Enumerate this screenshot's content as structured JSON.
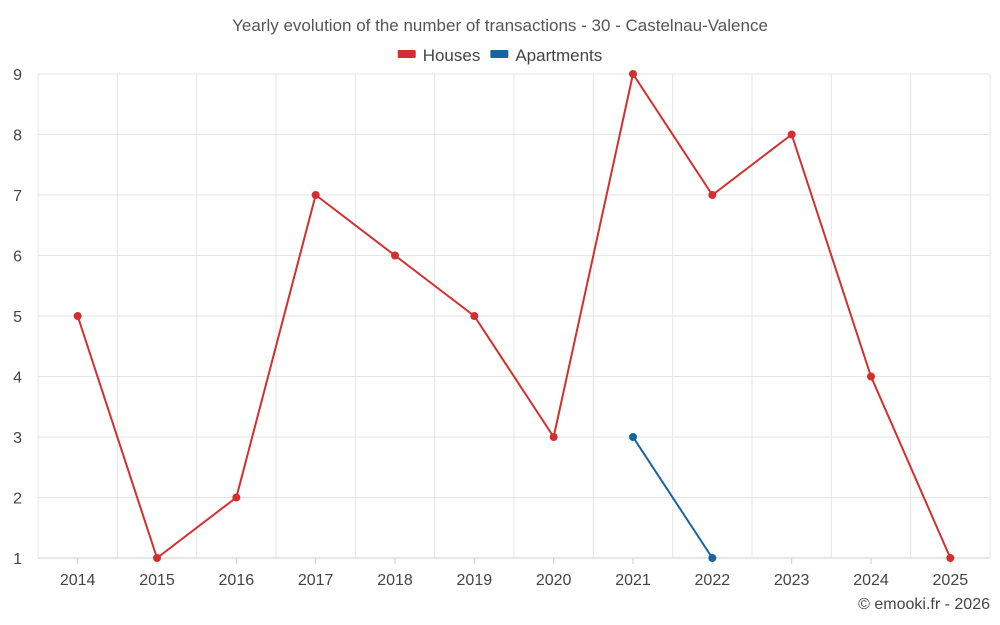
{
  "colors": {
    "houses": "#d32f2f",
    "apartments": "#1565a0",
    "grid": "#e6e6e6",
    "text": "#444444"
  },
  "chart_data": {
    "type": "line",
    "title": "Yearly evolution of the number of transactions - 30 - Castelnau-Valence",
    "xlabel": "",
    "ylabel": "",
    "categories": [
      "2014",
      "2015",
      "2016",
      "2017",
      "2018",
      "2019",
      "2020",
      "2021",
      "2022",
      "2023",
      "2024",
      "2025"
    ],
    "ylim": [
      1,
      9
    ],
    "yticks": [
      "1",
      "2",
      "3",
      "4",
      "5",
      "6",
      "7",
      "8",
      "9"
    ],
    "grid": true,
    "legend_position": "top-center",
    "series": [
      {
        "name": "Houses",
        "color": "#d32f2f",
        "values": [
          5,
          1,
          2,
          7,
          6,
          5,
          3,
          9,
          7,
          8,
          4,
          1
        ]
      },
      {
        "name": "Apartments",
        "color": "#1565a0",
        "values": [
          null,
          null,
          null,
          null,
          null,
          null,
          null,
          3,
          1,
          null,
          null,
          null
        ]
      }
    ]
  },
  "credit": "© emooki.fr - 2026"
}
